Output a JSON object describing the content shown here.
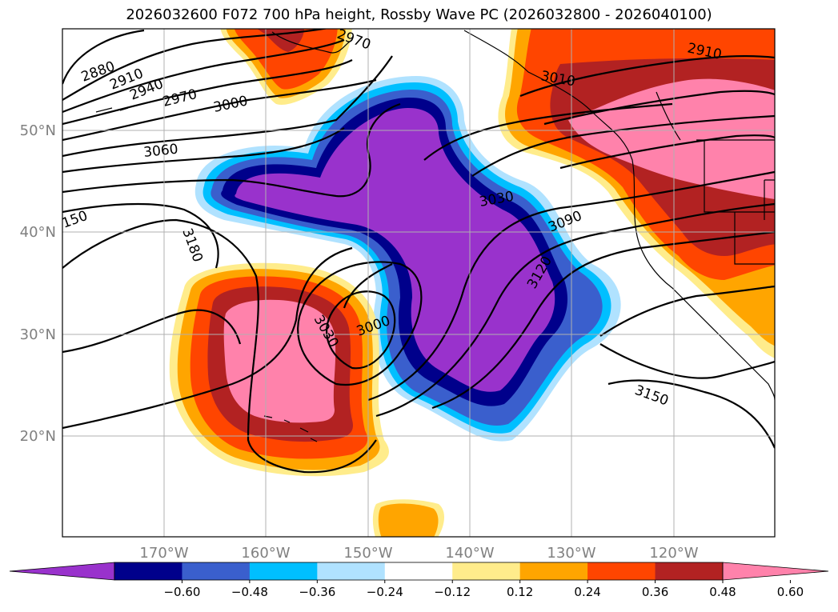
{
  "title": "2026032600 F072 700 hPa height, Rossby Wave PC (2026032800 - 2026040100)",
  "map": {
    "lon_labels": [
      "170°W",
      "160°W",
      "150°W",
      "140°W",
      "130°W",
      "120°W"
    ],
    "lat_labels": [
      "50°N",
      "40°N",
      "30°N",
      "20°N"
    ],
    "label_color": "#808080",
    "grid": true
  },
  "contour_labels": [
    "2880",
    "2910",
    "2940",
    "2970",
    "3000",
    "3060",
    "150",
    "3180",
    "3030",
    "3000",
    "3030",
    "3090",
    "3120",
    "3150",
    "2910",
    "2970",
    "3010"
  ],
  "colorbar": {
    "colors": [
      "#9932cc",
      "#00008b",
      "#3a5fcd",
      "#00bfff",
      "#b0e2ff",
      "#ffffff",
      "#ffec8b",
      "#ffa500",
      "#ff4500",
      "#b22222",
      "#ff82ab"
    ],
    "tick_labels": [
      "−0.60",
      "−0.48",
      "−0.36",
      "−0.24",
      "−0.12",
      "0.12",
      "0.24",
      "0.36",
      "0.48",
      "0.60"
    ]
  },
  "colors": {
    "purple": "#9932cc",
    "navy": "#00008b",
    "royal": "#3a5fcd",
    "cyan": "#00bfff",
    "lightblue": "#b0e2ff",
    "yellow": "#ffec8b",
    "orange": "#ffa500",
    "redorange": "#ff4500",
    "firebrick": "#b22222",
    "pink": "#ff82ab"
  }
}
